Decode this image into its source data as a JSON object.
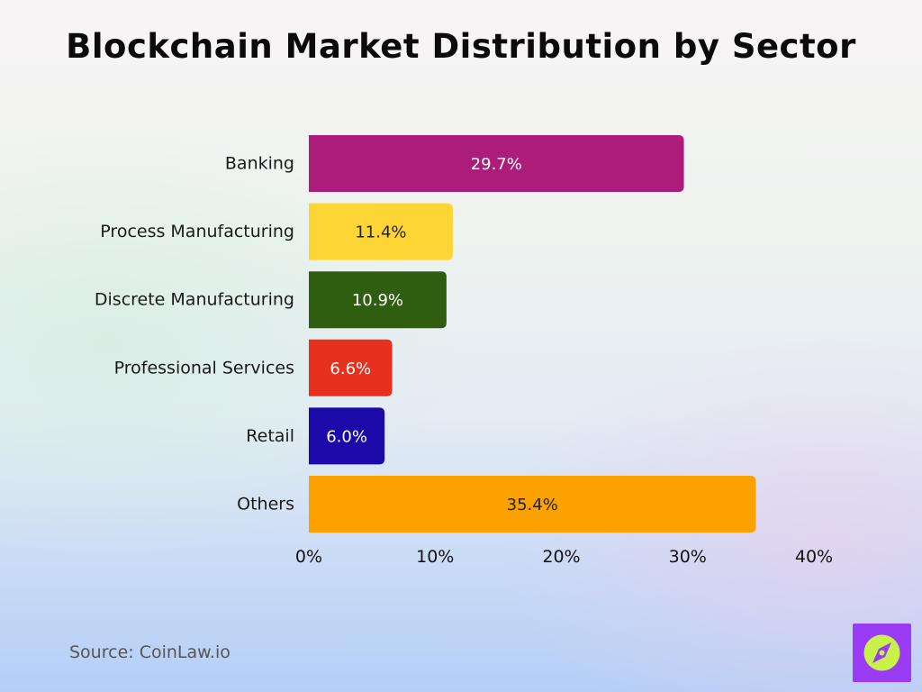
{
  "title": "Blockchain Market Distribution by Sector",
  "source": "Source: CoinLaw.io",
  "logo": {
    "icon": "compass-leaf-icon",
    "color": "#9a3cf6",
    "accent": "#c8f24a"
  },
  "chart_data": {
    "type": "bar",
    "orientation": "horizontal",
    "title": "Blockchain Market Distribution by Sector",
    "categories": [
      "Banking",
      "Process Manufacturing",
      "Discrete Manufacturing",
      "Professional Services",
      "Retail",
      "Others"
    ],
    "values": [
      29.7,
      11.4,
      10.9,
      6.6,
      6.0,
      35.4
    ],
    "value_labels": [
      "29.7%",
      "11.4%",
      "10.9%",
      "6.6%",
      "6.0%",
      "35.4%"
    ],
    "colors": [
      "#ab1d78",
      "#fdd535",
      "#2f5e10",
      "#e8301f",
      "#1a0aa8",
      "#fba201"
    ],
    "label_colors": [
      "#ffffff",
      "#222222",
      "#ffffff",
      "#ffffff",
      "#ffffff",
      "#222222"
    ],
    "xlim": [
      0,
      40
    ],
    "xticks": [
      0,
      10,
      20,
      30,
      40
    ],
    "xtick_labels": [
      "0%",
      "10%",
      "20%",
      "30%",
      "40%"
    ],
    "grid": false,
    "legend": "none"
  }
}
